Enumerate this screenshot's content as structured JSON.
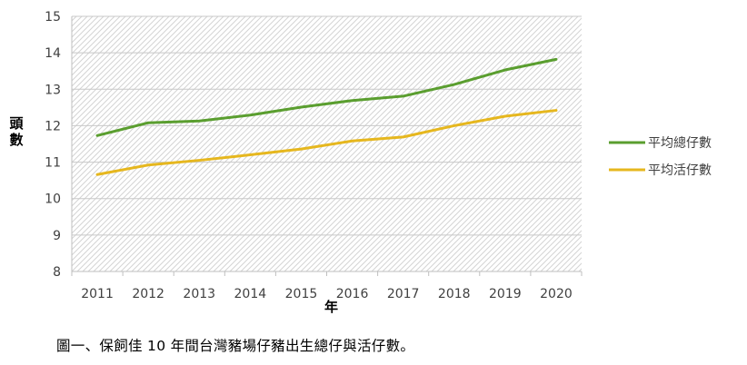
{
  "chart_data": {
    "type": "line",
    "title": "",
    "xlabel": "年",
    "ylabel": "頭數",
    "ylim": [
      8,
      15
    ],
    "ytick_step": 1,
    "grid": true,
    "plot_fill": "diagonal-hatch",
    "legend_position": "right",
    "categories": [
      "2011",
      "2012",
      "2013",
      "2014",
      "2015",
      "2016",
      "2017",
      "2018",
      "2019",
      "2020"
    ],
    "series": [
      {
        "name": "平均總仔數",
        "color": "#5a9e2f",
        "values": [
          11.73,
          12.08,
          12.13,
          12.29,
          12.51,
          12.69,
          12.81,
          13.13,
          13.53,
          13.82
        ]
      },
      {
        "name": "平均活仔數",
        "color": "#e6b71e",
        "values": [
          10.66,
          10.92,
          11.05,
          11.2,
          11.36,
          11.58,
          11.69,
          12.0,
          12.26,
          12.42
        ]
      }
    ]
  },
  "caption": "圖一、保飼佳 10 年間台灣豬場仔豬出生總仔與活仔數。"
}
